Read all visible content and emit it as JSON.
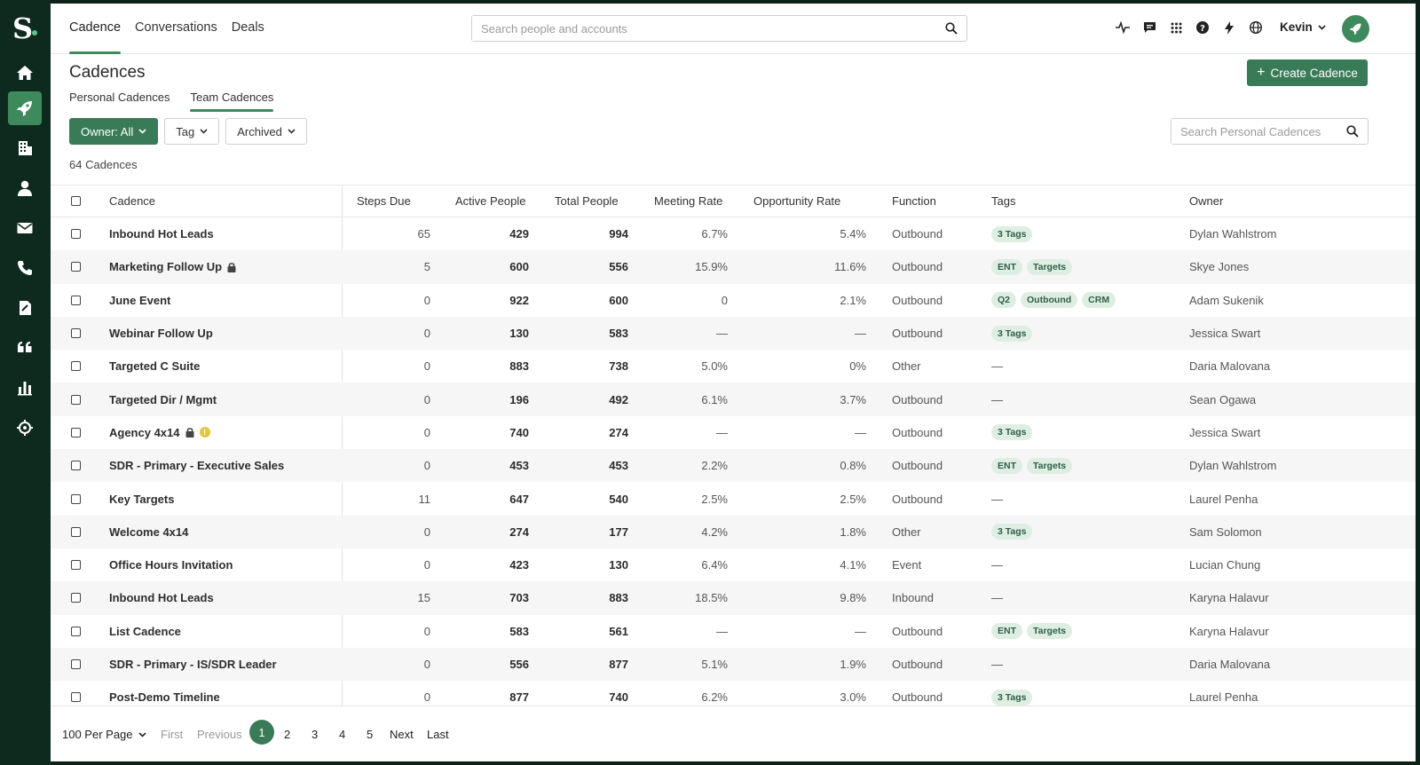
{
  "brand": {
    "logo_letter": "S",
    "accent": "#3a7b57",
    "sidebar_bg": "#0e2a1f"
  },
  "sidebar": {
    "items": [
      {
        "icon": "home-icon"
      },
      {
        "icon": "rocket-icon",
        "active": true
      },
      {
        "icon": "building-icon"
      },
      {
        "icon": "person-icon"
      },
      {
        "icon": "mail-icon"
      },
      {
        "icon": "phone-icon"
      },
      {
        "icon": "document-icon"
      },
      {
        "icon": "quote-icon"
      },
      {
        "icon": "bar-chart-icon"
      },
      {
        "icon": "crosshair-icon"
      }
    ]
  },
  "topnav": {
    "tabs": [
      {
        "label": "Cadence",
        "active": true
      },
      {
        "label": "Conversations"
      },
      {
        "label": "Deals"
      }
    ],
    "search_placeholder": "Search people and accounts",
    "user_name": "Kevin"
  },
  "page": {
    "title": "Cadences",
    "create_label": "Create Cadence",
    "subtabs": [
      {
        "label": "Personal Cadences"
      },
      {
        "label": "Team Cadences",
        "active": true
      }
    ],
    "filters": {
      "owner": "Owner: All",
      "tag": "Tag",
      "archived": "Archived"
    },
    "search_placeholder": "Search Personal Cadences",
    "count_label": "64 Cadences"
  },
  "table": {
    "columns": [
      "Cadence",
      "Steps Due",
      "Active People",
      "Total People",
      "Meeting Rate",
      "Opportunity Rate",
      "Function",
      "Tags",
      "Owner"
    ],
    "rows": [
      {
        "name": "Inbound Hot Leads",
        "steps": "65",
        "active": "429",
        "total": "994",
        "meeting": "6.7%",
        "opp": "5.4%",
        "function": "Outbound",
        "tags": [
          "3 Tags"
        ],
        "owner": "Dylan Wahlstrom"
      },
      {
        "name": "Marketing Follow Up",
        "lock": true,
        "steps": "5",
        "active": "600",
        "total": "556",
        "meeting": "15.9%",
        "opp": "11.6%",
        "function": "Outbound",
        "tags": [
          "ENT",
          "Targets"
        ],
        "owner": "Skye Jones"
      },
      {
        "name": "June Event",
        "steps": "0",
        "active": "922",
        "total": "600",
        "meeting": "0",
        "opp": "2.1%",
        "function": "Outbound",
        "tags": [
          "Q2",
          "Outbound",
          "CRM"
        ],
        "owner": "Adam Sukenik"
      },
      {
        "name": "Webinar Follow Up",
        "steps": "0",
        "active": "130",
        "total": "583",
        "meeting": "—",
        "opp": "—",
        "function": "Outbound",
        "tags": [
          "3 Tags"
        ],
        "owner": "Jessica Swart"
      },
      {
        "name": "Targeted C Suite",
        "steps": "0",
        "active": "883",
        "total": "738",
        "meeting": "5.0%",
        "opp": "0%",
        "function": "Other",
        "tags": [],
        "owner": "Daria Malovana"
      },
      {
        "name": "Targeted Dir / Mgmt",
        "steps": "0",
        "active": "196",
        "total": "492",
        "meeting": "6.1%",
        "opp": "3.7%",
        "function": "Outbound",
        "tags": [],
        "owner": "Sean Ogawa"
      },
      {
        "name": "Agency 4x14",
        "lock": true,
        "warn": true,
        "steps": "0",
        "active": "740",
        "total": "274",
        "meeting": "—",
        "opp": "—",
        "function": "Outbound",
        "tags": [
          "3 Tags"
        ],
        "owner": "Jessica Swart"
      },
      {
        "name": "SDR - Primary - Executive Sales",
        "steps": "0",
        "active": "453",
        "total": "453",
        "meeting": "2.2%",
        "opp": "0.8%",
        "function": "Outbound",
        "tags": [
          "ENT",
          "Targets"
        ],
        "owner": "Dylan Wahlstrom"
      },
      {
        "name": "Key Targets",
        "steps": "11",
        "active": "647",
        "total": "540",
        "meeting": "2.5%",
        "opp": "2.5%",
        "function": "Outbound",
        "tags": [],
        "owner": "Laurel Penha"
      },
      {
        "name": "Welcome 4x14",
        "steps": "0",
        "active": "274",
        "total": "177",
        "meeting": "4.2%",
        "opp": "1.8%",
        "function": "Other",
        "tags": [
          "3 Tags"
        ],
        "owner": "Sam Solomon"
      },
      {
        "name": "Office Hours Invitation",
        "steps": "0",
        "active": "423",
        "total": "130",
        "meeting": "6.4%",
        "opp": "4.1%",
        "function": "Event",
        "tags": [],
        "owner": "Lucian Chung"
      },
      {
        "name": "Inbound Hot Leads",
        "steps": "15",
        "active": "703",
        "total": "883",
        "meeting": "18.5%",
        "opp": "9.8%",
        "function": "Inbound",
        "tags": [],
        "owner": "Karyna Halavur"
      },
      {
        "name": "List Cadence",
        "steps": "0",
        "active": "583",
        "total": "561",
        "meeting": "—",
        "opp": "—",
        "function": "Outbound",
        "tags": [
          "ENT",
          "Targets"
        ],
        "owner": "Karyna Halavur"
      },
      {
        "name": "SDR - Primary - IS/SDR Leader",
        "steps": "0",
        "active": "556",
        "total": "877",
        "meeting": "5.1%",
        "opp": "1.9%",
        "function": "Outbound",
        "tags": [],
        "owner": "Daria Malovana"
      },
      {
        "name": "Post-Demo Timeline",
        "steps": "0",
        "active": "877",
        "total": "740",
        "meeting": "6.2%",
        "opp": "3.0%",
        "function": "Outbound",
        "tags": [
          "3 Tags"
        ],
        "owner": "Laurel Penha"
      }
    ]
  },
  "pager": {
    "per_page": "100 Per Page",
    "first": "First",
    "previous": "Previous",
    "pages": [
      "1",
      "2",
      "3",
      "4",
      "5"
    ],
    "current": "1",
    "next": "Next",
    "last": "Last"
  }
}
